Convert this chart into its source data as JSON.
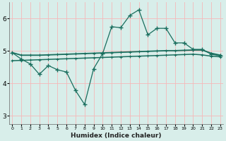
{
  "xlabel": "Humidex (Indice chaleur)",
  "x": [
    0,
    1,
    2,
    3,
    4,
    5,
    6,
    7,
    8,
    9,
    10,
    11,
    12,
    13,
    14,
    15,
    16,
    17,
    18,
    19,
    20,
    21,
    22,
    23
  ],
  "jagged_line": [
    4.95,
    4.75,
    4.6,
    4.28,
    4.55,
    4.42,
    4.35,
    3.78,
    3.35,
    4.45,
    4.92,
    5.75,
    5.72,
    6.1,
    6.27,
    5.5,
    5.7,
    5.7,
    5.25,
    5.25,
    5.05,
    5.05,
    4.9,
    4.85
  ],
  "upper_smooth": [
    4.95,
    4.87,
    4.87,
    4.87,
    4.88,
    4.89,
    4.9,
    4.91,
    4.92,
    4.93,
    4.94,
    4.95,
    4.96,
    4.97,
    4.98,
    4.99,
    5.0,
    5.01,
    5.01,
    5.02,
    5.03,
    5.03,
    4.93,
    4.87
  ],
  "lower_smooth": [
    4.7,
    4.71,
    4.72,
    4.73,
    4.74,
    4.75,
    4.76,
    4.77,
    4.78,
    4.79,
    4.8,
    4.81,
    4.82,
    4.83,
    4.84,
    4.85,
    4.86,
    4.87,
    4.88,
    4.89,
    4.9,
    4.88,
    4.84,
    4.82
  ],
  "color": "#1a6e5e",
  "bg_color": "#d8eeea",
  "grid_color_h": "#f5b8b8",
  "grid_color_v": "#f5b8b8",
  "ylim": [
    2.75,
    6.5
  ],
  "yticks": [
    3,
    4,
    5,
    6
  ],
  "xlim": [
    -0.3,
    23.3
  ]
}
